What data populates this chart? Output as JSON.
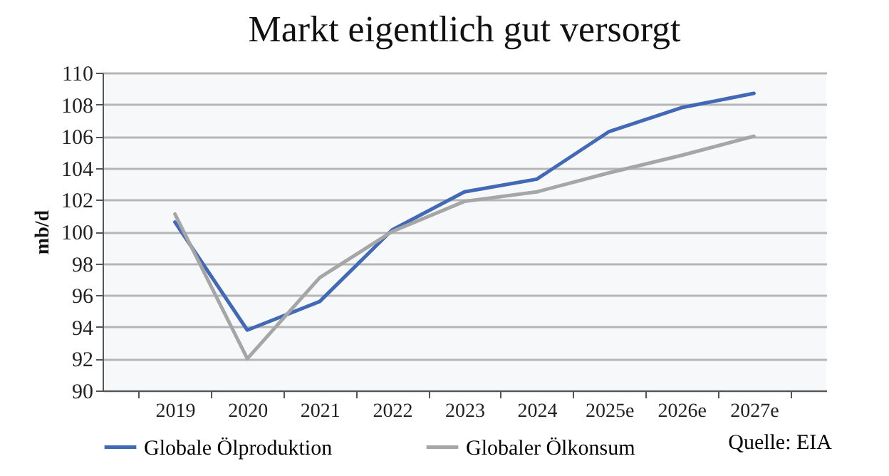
{
  "chart_data": {
    "type": "line",
    "title": "Markt eigentlich gut versorgt",
    "ylabel": "mb/d",
    "categories": [
      "2019",
      "2020",
      "2021",
      "2022",
      "2023",
      "2024",
      "2025e",
      "2026e",
      "2027e"
    ],
    "series": [
      {
        "name": "Globale Ölproduktion",
        "color": "#4169b5",
        "values": [
          100.6,
          93.8,
          95.6,
          100.1,
          102.5,
          103.3,
          106.3,
          107.8,
          108.7
        ]
      },
      {
        "name": "Globaler Ölkonsum",
        "color": "#a6a6a6",
        "values": [
          101.1,
          92.0,
          97.1,
          100.0,
          101.9,
          102.5,
          103.7,
          104.8,
          106.0
        ]
      }
    ],
    "ylim": [
      90,
      110
    ],
    "yticks": [
      90,
      92,
      94,
      96,
      98,
      100,
      102,
      104,
      106,
      108,
      110
    ],
    "grid": "y",
    "legend": "bottom",
    "marker": "none",
    "line_style": "solid",
    "annotations": [
      "Quelle: EIA"
    ]
  }
}
